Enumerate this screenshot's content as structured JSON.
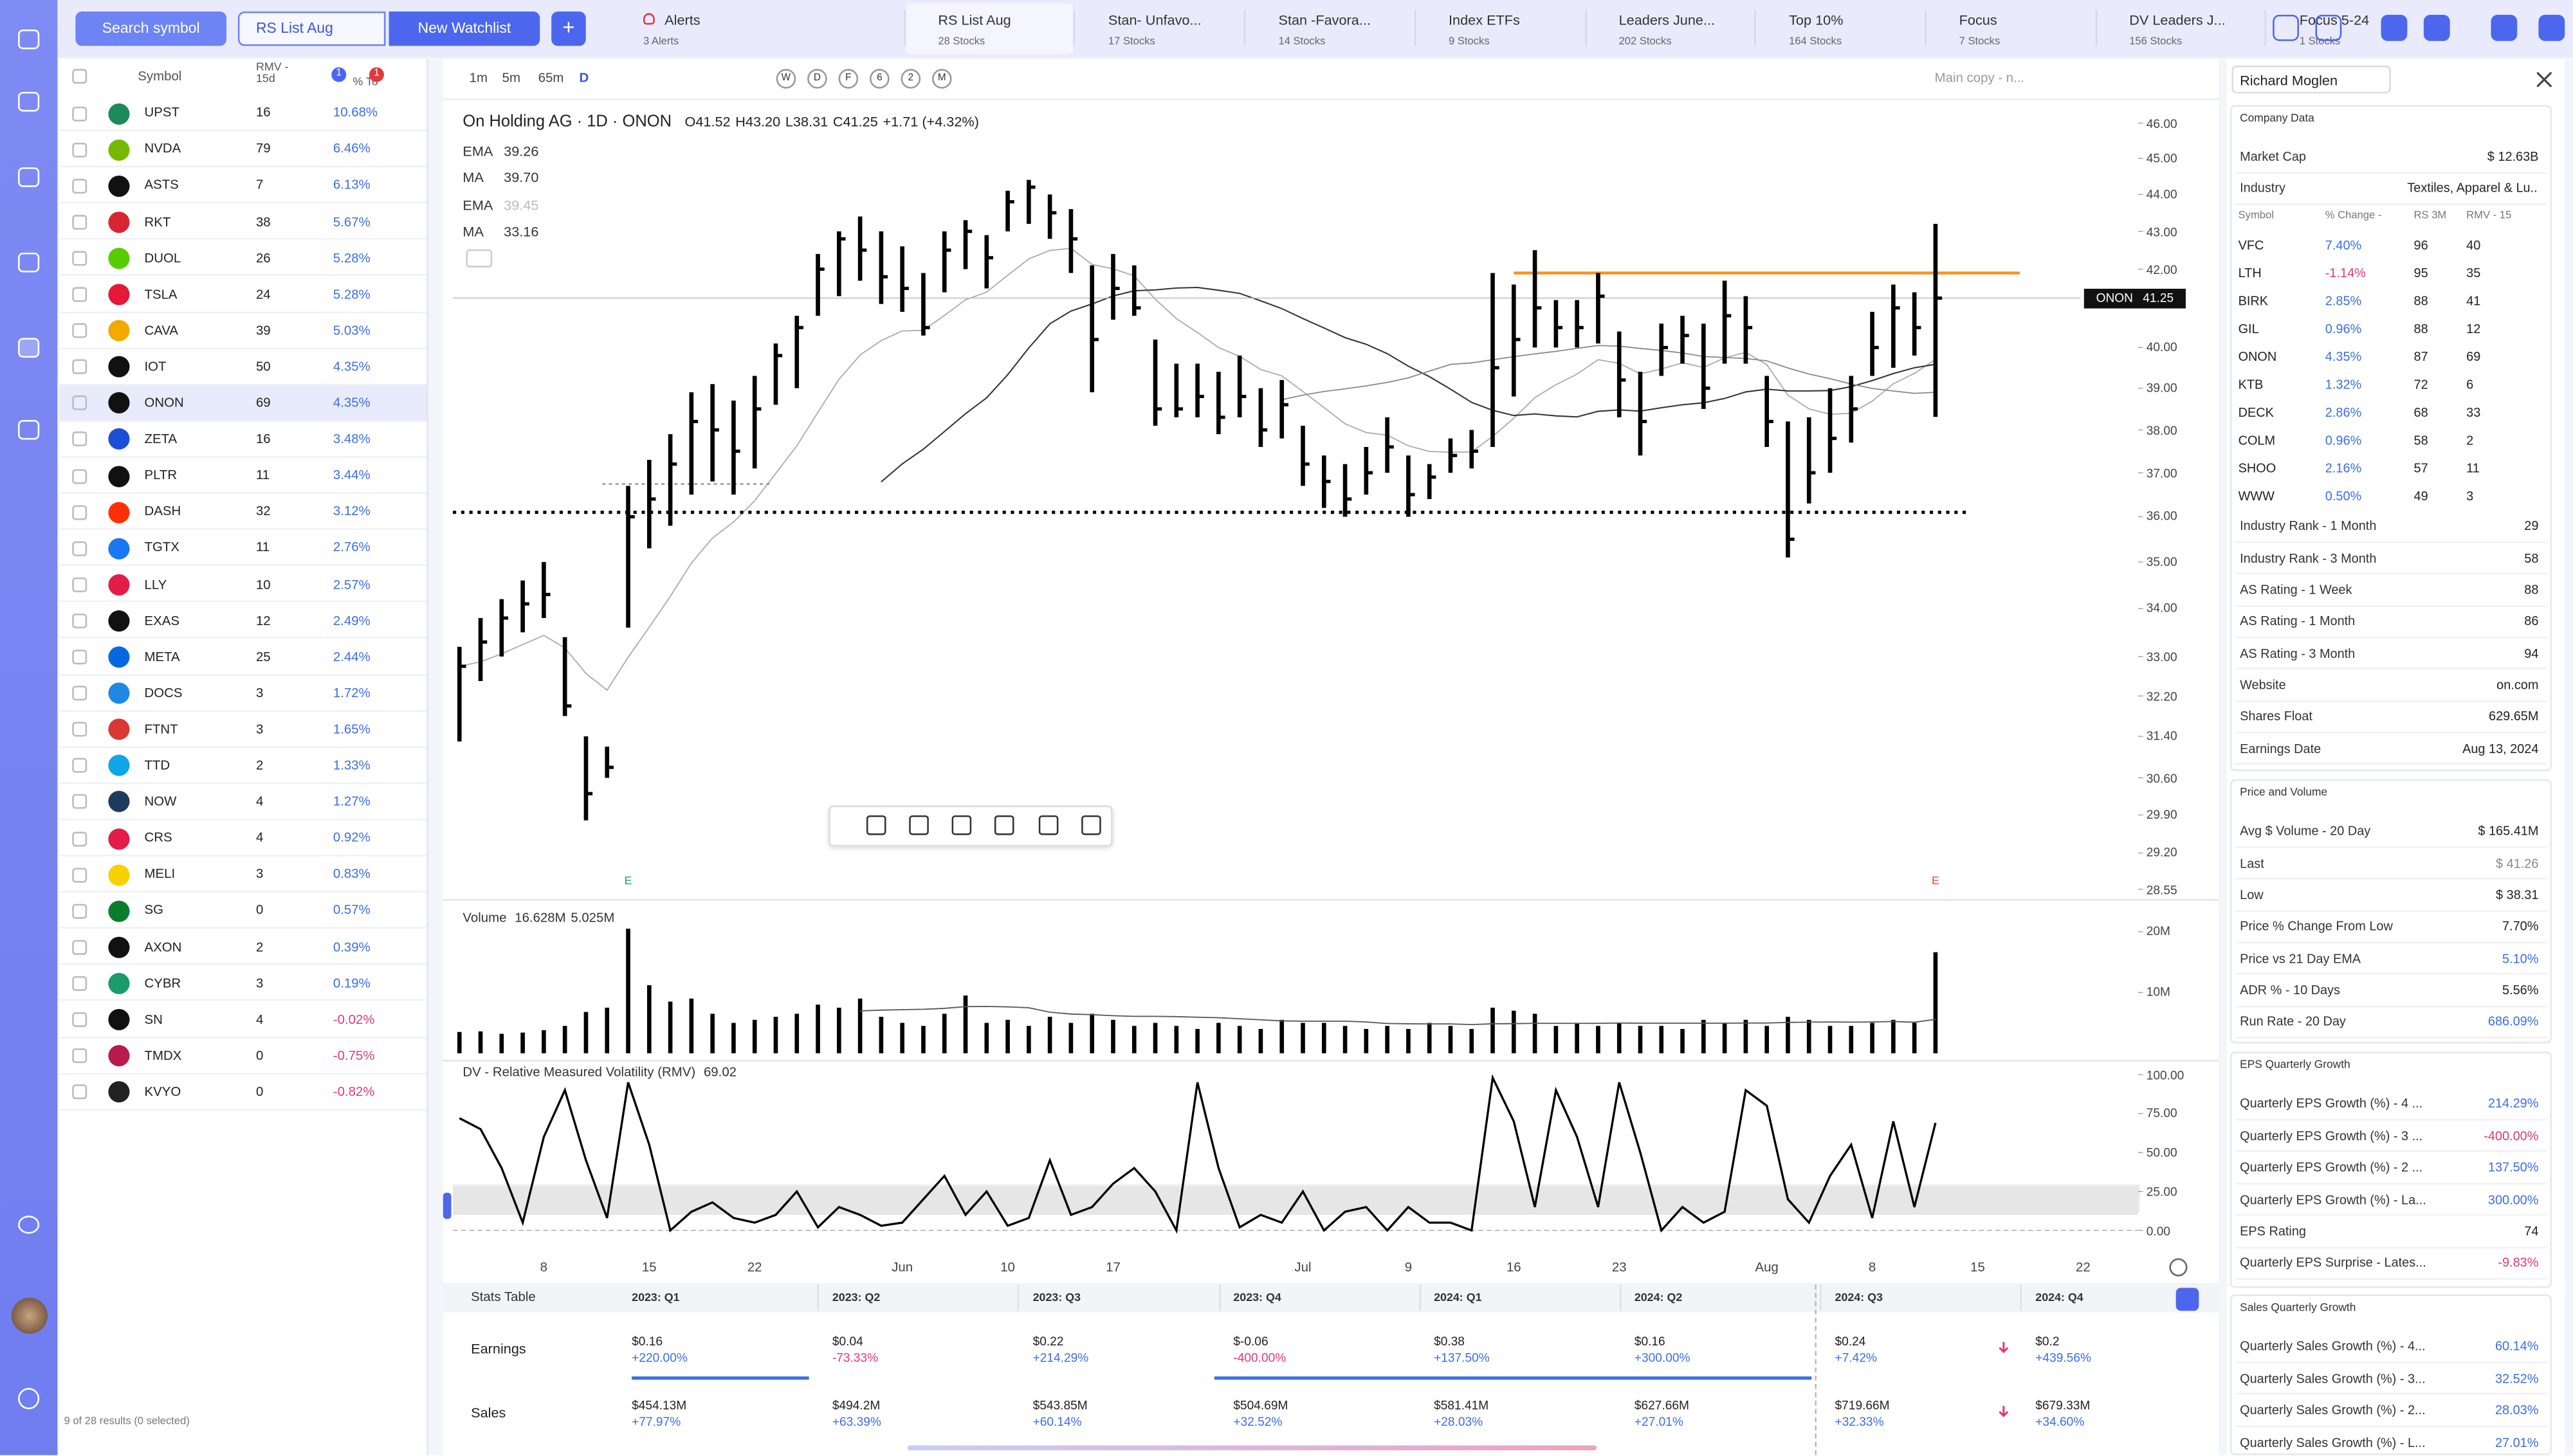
{
  "top_bar": {
    "search": "Search symbol",
    "list_select": "RS List Aug",
    "new_watchlist": "New Watchlist",
    "add": "+",
    "tabs": [
      {
        "title": "Alerts",
        "count": "3 Alerts"
      },
      {
        "title": "RS List Aug",
        "count": "28 Stocks"
      },
      {
        "title": "Stan- Unfavo...",
        "count": "17 Stocks"
      },
      {
        "title": "Stan -Favora...",
        "count": "14 Stocks"
      },
      {
        "title": "Index ETFs",
        "count": "9 Stocks"
      },
      {
        "title": "Leaders June...",
        "count": "202 Stocks"
      },
      {
        "title": "Top 10%",
        "count": "164 Stocks"
      },
      {
        "title": "Focus",
        "count": "7 Stocks"
      },
      {
        "title": "DV Leaders J...",
        "count": "156 Stocks"
      },
      {
        "title": "Focus 5-24",
        "count": "1 Stocks"
      }
    ]
  },
  "watchlist": {
    "columns": [
      "Symbol",
      "RMV - 15d",
      "% To"
    ],
    "badges": [
      "1",
      "1"
    ],
    "rows": [
      {
        "symbol": "UPST",
        "rmv": 16,
        "change": "10.68%"
      },
      {
        "symbol": "NVDA",
        "rmv": 79,
        "change": "6.46%"
      },
      {
        "symbol": "ASTS",
        "rmv": 7,
        "change": "6.13%"
      },
      {
        "symbol": "RKT",
        "rmv": 38,
        "change": "5.67%"
      },
      {
        "symbol": "DUOL",
        "rmv": 26,
        "change": "5.28%"
      },
      {
        "symbol": "TSLA",
        "rmv": 24,
        "change": "5.28%"
      },
      {
        "symbol": "CAVA",
        "rmv": 39,
        "change": "5.03%"
      },
      {
        "symbol": "IOT",
        "rmv": 50,
        "change": "4.35%"
      },
      {
        "symbol": "ONON",
        "rmv": 69,
        "change": "4.35%"
      },
      {
        "symbol": "ZETA",
        "rmv": 16,
        "change": "3.48%"
      },
      {
        "symbol": "PLTR",
        "rmv": 11,
        "change": "3.44%"
      },
      {
        "symbol": "DASH",
        "rmv": 32,
        "change": "3.12%"
      },
      {
        "symbol": "TGTX",
        "rmv": 11,
        "change": "2.76%"
      },
      {
        "symbol": "LLY",
        "rmv": 10,
        "change": "2.57%"
      },
      {
        "symbol": "EXAS",
        "rmv": 12,
        "change": "2.49%"
      },
      {
        "symbol": "META",
        "rmv": 25,
        "change": "2.44%"
      },
      {
        "symbol": "DOCS",
        "rmv": 3,
        "change": "1.72%"
      },
      {
        "symbol": "FTNT",
        "rmv": 3,
        "change": "1.65%"
      },
      {
        "symbol": "TTD",
        "rmv": 2,
        "change": "1.33%"
      },
      {
        "symbol": "NOW",
        "rmv": 4,
        "change": "1.27%"
      },
      {
        "symbol": "CRS",
        "rmv": 4,
        "change": "0.92%"
      },
      {
        "symbol": "MELI",
        "rmv": 3,
        "change": "0.83%"
      },
      {
        "symbol": "SG",
        "rmv": 0,
        "change": "0.57%"
      },
      {
        "symbol": "AXON",
        "rmv": 2,
        "change": "0.39%"
      },
      {
        "symbol": "CYBR",
        "rmv": 3,
        "change": "0.19%"
      },
      {
        "symbol": "SN",
        "rmv": 4,
        "change": "-0.02%"
      },
      {
        "symbol": "TMDX",
        "rmv": 0,
        "change": "-0.75%"
      },
      {
        "symbol": "KVYO",
        "rmv": 0,
        "change": "-0.82%"
      }
    ],
    "footer": "9 of 28 results (0 selected)"
  },
  "toolbar": {
    "intervals": [
      "1m",
      "5m",
      "65m",
      "D"
    ],
    "periods": [
      "W",
      "D",
      "F",
      "6",
      "2",
      "M"
    ],
    "layout": "Main copy - n..."
  },
  "chart_header": {
    "title": "On Holding AG · 1D · ONON",
    "open": "O41.52",
    "high": "H43.20",
    "low": "L38.31",
    "close": "C41.25",
    "change": "+1.71 (+4.32%)",
    "indicators": [
      {
        "name": "EMA",
        "value": "39.26"
      },
      {
        "name": "MA",
        "value": "39.70"
      },
      {
        "name": "EMA",
        "value": "39.45"
      },
      {
        "name": "MA",
        "value": "33.16"
      }
    ]
  },
  "chart_data": [
    {
      "type": "ohlc",
      "log_scale": true,
      "grid": false,
      "color": "#000000",
      "categories": [
        null,
        null,
        null,
        null,
        "8",
        null,
        null,
        null,
        null,
        "15",
        null,
        null,
        null,
        null,
        "22",
        null,
        null,
        null,
        null,
        null,
        null,
        "Jun",
        null,
        null,
        null,
        null,
        "10",
        null,
        null,
        null,
        null,
        "17",
        null,
        null,
        null,
        null,
        null,
        null,
        null,
        null,
        "Jul",
        null,
        null,
        null,
        null,
        "9",
        null,
        null,
        null,
        null,
        "16",
        null,
        null,
        null,
        null,
        "23",
        null,
        null,
        null,
        null,
        null,
        null,
        "Aug",
        null,
        null,
        null,
        null,
        "8",
        null,
        null,
        null,
        null,
        "15",
        null,
        null,
        null,
        null,
        "22",
        null,
        null
      ],
      "high": [
        33.2,
        33.8,
        34.2,
        34.6,
        35.0,
        33.4,
        31.4,
        31.2,
        36.7,
        37.3,
        37.9,
        38.9,
        39.1,
        38.7,
        39.3,
        40.1,
        40.8,
        42.4,
        43.0,
        43.4,
        43.0,
        42.6,
        41.9,
        43.0,
        43.3,
        42.9,
        44.1,
        44.4,
        44.0,
        43.6,
        42.1,
        42.4,
        42.1,
        40.2,
        39.6,
        39.6,
        39.4,
        39.8,
        39.0,
        39.2,
        38.1,
        37.4,
        37.2,
        37.6,
        38.3,
        37.4,
        37.2,
        37.8,
        38.0,
        41.9,
        41.6,
        42.5,
        41.2,
        41.2,
        41.9,
        40.4,
        39.4,
        40.6,
        40.8,
        40.6,
        41.7,
        41.3,
        39.3,
        38.2,
        38.3,
        39.0,
        39.3,
        40.9,
        41.6,
        41.4,
        43.2,
        null,
        null,
        null,
        null,
        null,
        null,
        null,
        null,
        null
      ],
      "low": [
        31.3,
        32.5,
        33.0,
        33.5,
        33.8,
        31.8,
        29.8,
        30.6,
        33.6,
        35.3,
        35.8,
        36.5,
        36.8,
        36.5,
        37.1,
        38.6,
        39.0,
        40.8,
        41.3,
        41.7,
        41.1,
        40.9,
        40.3,
        41.4,
        42.0,
        41.5,
        43.0,
        43.2,
        42.8,
        41.9,
        38.9,
        40.7,
        40.8,
        38.1,
        38.3,
        38.3,
        37.9,
        38.3,
        37.6,
        37.8,
        36.7,
        36.2,
        36.0,
        36.5,
        37.0,
        36.0,
        36.4,
        37.0,
        37.1,
        37.6,
        38.8,
        40.0,
        40.0,
        40.0,
        40.1,
        38.3,
        37.4,
        39.3,
        39.6,
        38.5,
        39.6,
        39.6,
        37.6,
        35.1,
        36.3,
        37.0,
        37.7,
        39.3,
        39.5,
        39.8,
        38.31,
        null,
        null,
        null,
        null,
        null,
        null,
        null,
        null,
        null
      ],
      "close": [
        32.8,
        33.3,
        33.8,
        34.1,
        34.3,
        32.0,
        30.3,
        30.8,
        36.0,
        36.4,
        37.2,
        38.2,
        38.0,
        37.5,
        38.5,
        39.8,
        40.5,
        42.0,
        42.8,
        42.5,
        41.8,
        41.5,
        40.5,
        42.5,
        43.0,
        42.3,
        43.8,
        44.2,
        43.5,
        42.8,
        40.2,
        41.5,
        41.0,
        38.5,
        38.5,
        38.8,
        38.3,
        38.8,
        38.0,
        38.6,
        37.2,
        36.8,
        36.4,
        37.0,
        37.6,
        36.5,
        36.9,
        37.4,
        37.5,
        39.5,
        40.2,
        41.0,
        40.5,
        40.5,
        41.3,
        39.2,
        38.2,
        40.0,
        40.3,
        39.0,
        40.8,
        40.5,
        38.2,
        35.5,
        37.0,
        37.8,
        38.5,
        40.0,
        41.0,
        40.5,
        41.25,
        null,
        null,
        null,
        null,
        null,
        null,
        null,
        null,
        null
      ],
      "ylim": [
        28.55,
        46
      ],
      "yticks": [
        {
          "value": 46,
          "label": "46.00"
        },
        {
          "value": 45,
          "label": "45.00"
        },
        {
          "value": 44,
          "label": "44.00"
        },
        {
          "value": 43,
          "label": "43.00"
        },
        {
          "value": 42,
          "label": "42.00"
        },
        {
          "value": 40,
          "label": "40.00"
        },
        {
          "value": 39,
          "label": "39.00"
        },
        {
          "value": 38,
          "label": "38.00"
        },
        {
          "value": 37,
          "label": "37.00"
        },
        {
          "value": 36,
          "label": "36.00"
        },
        {
          "value": 35,
          "label": "35.00"
        },
        {
          "value": 34,
          "label": "34.00"
        },
        {
          "value": 33,
          "label": "33.00"
        },
        {
          "value": 32.2,
          "label": "32.20"
        },
        {
          "value": 31.4,
          "label": "31.40"
        },
        {
          "value": 30.6,
          "label": "30.60"
        },
        {
          "value": 29.9,
          "label": "29.90"
        },
        {
          "value": 29.2,
          "label": "29.20"
        },
        {
          "value": 28.55,
          "label": "28.55"
        }
      ],
      "levels": [
        {
          "value": 41.9,
          "color": "#f7931e",
          "style": "solid"
        },
        {
          "value": 36.1,
          "color": "#000000",
          "style": "dotted"
        }
      ],
      "last_price": {
        "symbol": "ONON",
        "value": 41.25
      },
      "annotations": [
        {
          "text": "E",
          "index": 8,
          "color": "#17a589"
        },
        {
          "text": "E",
          "index": 70,
          "color": "#e74c3c"
        }
      ]
    },
    {
      "type": "bar",
      "title": "Volume",
      "legend_values": [
        "16.628M",
        "5.025M"
      ],
      "color": "#000000",
      "values": [
        3500000,
        3600000,
        3200000,
        3400000,
        3800000,
        4500000,
        6800000,
        7500000,
        20500000,
        11200000,
        8500000,
        9000000,
        6500000,
        5000000,
        5500000,
        6000000,
        6500000,
        8000000,
        7500000,
        9000000,
        6000000,
        5000000,
        4500000,
        6500000,
        9500000,
        5000000,
        5500000,
        4500000,
        6000000,
        5000000,
        6500000,
        5500000,
        4500000,
        5000000,
        4500000,
        4000000,
        5000000,
        4500000,
        4000000,
        5500000,
        5000000,
        5000000,
        4500000,
        4000000,
        4500000,
        4000000,
        5000000,
        4500000,
        4000000,
        7500000,
        7000000,
        6500000,
        4500000,
        5000000,
        4500000,
        5000000,
        4500000,
        4500000,
        4000000,
        5500000,
        5000000,
        5500000,
        4500000,
        6000000,
        5500000,
        4500000,
        4500000,
        5000000,
        5500000,
        5000000,
        16628000,
        null,
        null,
        null,
        null,
        null,
        null,
        null,
        null,
        null
      ],
      "ylim": [
        0,
        24300000
      ],
      "yticks": [
        {
          "value": 20000000,
          "label": "20M"
        },
        {
          "value": 10000000,
          "label": "10M"
        }
      ]
    },
    {
      "type": "line",
      "title": "DV - Relative Measured Volatility (RMV)",
      "legend_value": "69.02",
      "color": "#000000",
      "band": [
        10,
        28
      ],
      "values": [
        72,
        65,
        40,
        5,
        60,
        90,
        45,
        8,
        95,
        55,
        0,
        12,
        18,
        8,
        5,
        10,
        25,
        2,
        15,
        10,
        3,
        5,
        20,
        35,
        10,
        25,
        3,
        8,
        45,
        10,
        15,
        30,
        40,
        25,
        0,
        95,
        40,
        2,
        10,
        5,
        25,
        0,
        12,
        15,
        0,
        15,
        5,
        5,
        0,
        98,
        70,
        15,
        90,
        60,
        15,
        95,
        50,
        0,
        15,
        5,
        12,
        90,
        80,
        20,
        5,
        35,
        55,
        8,
        70,
        15,
        69.02,
        null,
        null,
        null,
        null,
        null,
        null,
        null,
        null,
        null
      ],
      "ylim": [
        0,
        100
      ],
      "yticks": [
        {
          "value": 100,
          "label": "100.00"
        },
        {
          "value": 75,
          "label": "75.00"
        },
        {
          "value": 50,
          "label": "50.00"
        },
        {
          "value": 25,
          "label": "25.00"
        },
        {
          "value": 0,
          "label": "0.00"
        }
      ]
    }
  ],
  "stats_table": {
    "title": "Stats Table",
    "columns": [
      "2023: Q1",
      "2023: Q2",
      "2023: Q3",
      "2023: Q4",
      "2024: Q1",
      "2024: Q2",
      "2024: Q3",
      "2024: Q4"
    ],
    "rows": [
      {
        "label": "Earnings",
        "values": [
          "$0.16",
          "$0.04",
          "$0.22",
          "$-0.06",
          "$0.38",
          "$0.16",
          "$0.24",
          "$0.2"
        ],
        "changes": [
          "+220.00%",
          "-73.33%",
          "+214.29%",
          "-400.00%",
          "+137.50%",
          "+300.00%",
          "+7.42%",
          "+439.56%"
        ]
      },
      {
        "label": "Sales",
        "values": [
          "$454.13M",
          "$494.2M",
          "$543.85M",
          "$504.69M",
          "$581.41M",
          "$627.66M",
          "$719.66M",
          "$679.33M"
        ],
        "changes": [
          "+77.97%",
          "+63.39%",
          "+60.14%",
          "+32.52%",
          "+28.03%",
          "+27.01%",
          "+32.33%",
          "+34.60%"
        ]
      }
    ]
  },
  "side_panel": {
    "user": "Richard Moglen",
    "company": {
      "title": "Company Data",
      "rows": [
        [
          "Market Cap",
          "$ 12.63B"
        ],
        [
          "Industry",
          "Textiles, Apparel & Lu..."
        ]
      ],
      "peers": {
        "columns": [
          "Symbol",
          "% Change -",
          "RS 3M",
          "RMV - 15"
        ],
        "rows": [
          [
            "VFC",
            "7.40%",
            96,
            40
          ],
          [
            "LTH",
            "-1.14%",
            95,
            35
          ],
          [
            "BIRK",
            "2.85%",
            88,
            41
          ],
          [
            "GIL",
            "0.96%",
            88,
            12
          ],
          [
            "ONON",
            "4.35%",
            87,
            69
          ],
          [
            "KTB",
            "1.32%",
            72,
            6
          ],
          [
            "DECK",
            "2.86%",
            68,
            33
          ],
          [
            "COLM",
            "0.96%",
            58,
            2
          ],
          [
            "SHOO",
            "2.16%",
            57,
            11
          ],
          [
            "WWW",
            "0.50%",
            49,
            3
          ]
        ]
      },
      "stats": [
        [
          "Industry Rank - 1 Month",
          29
        ],
        [
          "Industry Rank - 3 Month",
          58
        ],
        [
          "AS Rating - 1 Week",
          88
        ],
        [
          "AS Rating - 1 Month",
          86
        ],
        [
          "AS Rating - 3 Month",
          94
        ],
        [
          "Website",
          "on.com"
        ],
        [
          "Shares Float",
          "629.65M"
        ],
        [
          "Earnings Date",
          "Aug 13, 2024"
        ]
      ]
    },
    "price_volume": {
      "title": "Price and Volume",
      "rows": [
        [
          "Avg $ Volume - 20 Day",
          "$ 165.41M"
        ],
        [
          "Last",
          "$ 41.26"
        ],
        [
          "Low",
          "$ 38.31"
        ],
        [
          "Price % Change From Low",
          "7.70%"
        ],
        [
          "Price vs 21 Day EMA",
          "5.10%"
        ],
        [
          "ADR % - 10 Days",
          "5.56%"
        ],
        [
          "Run Rate - 20 Day",
          "686.09%"
        ]
      ]
    },
    "eps": {
      "title": "EPS Quarterly Growth",
      "rows": [
        [
          "Quarterly EPS Growth (%) - 4 ...",
          "214.29%"
        ],
        [
          "Quarterly EPS Growth (%) - 3 ...",
          "-400.00%"
        ],
        [
          "Quarterly EPS Growth (%) - 2 ...",
          "137.50%"
        ],
        [
          "Quarterly EPS Growth (%) - La...",
          "300.00%"
        ],
        [
          "EPS Rating",
          74
        ],
        [
          "Quarterly EPS Surprise - Lates...",
          "-9.83%"
        ]
      ]
    },
    "sales": {
      "title": "Sales Quarterly Growth",
      "rows": [
        [
          "Quarterly Sales Growth (%) - 4...",
          "60.14%"
        ],
        [
          "Quarterly Sales Growth (%) - 3...",
          "32.52%"
        ],
        [
          "Quarterly Sales Growth (%) - 2...",
          "28.03%"
        ],
        [
          "Quarterly Sales Growth (%) - L...",
          "27.01%"
        ]
      ]
    }
  }
}
